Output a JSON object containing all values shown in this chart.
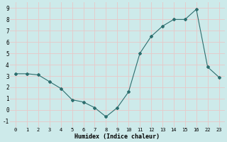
{
  "y": [
    3.2,
    3.2,
    3.1,
    2.5,
    1.9,
    0.9,
    0.7,
    0.2,
    -0.6,
    0.2,
    1.6,
    5.0,
    6.5,
    7.4,
    8.0,
    8.0,
    8.9,
    3.8,
    2.9
  ],
  "x_positions": [
    0,
    1,
    2,
    3,
    4,
    5,
    6,
    7,
    8,
    9,
    10,
    11,
    12,
    13,
    14,
    15,
    16,
    17,
    18
  ],
  "xlabel": "Humidex (Indice chaleur)",
  "xlim": [
    -0.5,
    18.5
  ],
  "ylim": [
    -1.5,
    9.5
  ],
  "yticks": [
    -1,
    0,
    1,
    2,
    3,
    4,
    5,
    6,
    7,
    8,
    9
  ],
  "xtick_positions": [
    0,
    1,
    2,
    3,
    4,
    5,
    6,
    7,
    8,
    9,
    10,
    11,
    12,
    13,
    14,
    15,
    16,
    17,
    18
  ],
  "xtick_labels": [
    "0",
    "1",
    "2",
    "3",
    "4",
    "5",
    "6",
    "7",
    "8",
    "9",
    "10",
    "11",
    "12",
    "13",
    "14",
    "15",
    "16",
    "22",
    "23"
  ],
  "line_color": "#2d6e6e",
  "marker_color": "#2d6e6e",
  "bg_color": "#cdeaea",
  "grid_color": "#e8c8c8",
  "title": ""
}
